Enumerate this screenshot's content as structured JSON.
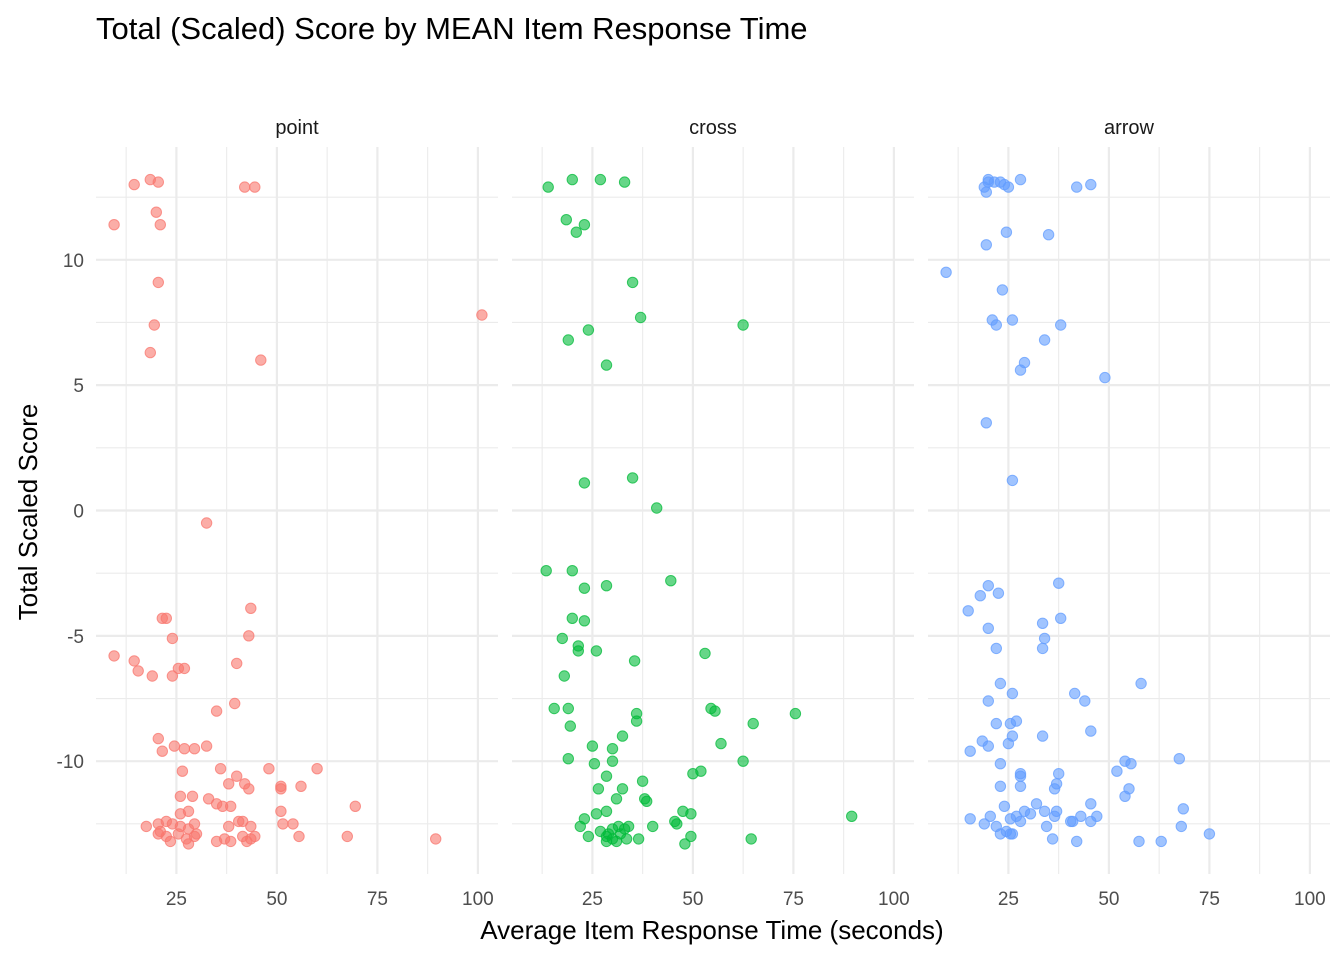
{
  "chart_data": {
    "type": "scatter",
    "title": "Total (Scaled) Score by MEAN Item Response Time",
    "xlabel": "Average Item Response Time (seconds)",
    "ylabel": "Total Scaled Score",
    "xlim": [
      5,
      105
    ],
    "ylim": [
      -14.5,
      14.5
    ],
    "x_ticks": [
      25,
      50,
      75,
      100
    ],
    "y_ticks": [
      -10,
      -5,
      0,
      5,
      10
    ],
    "x_tick_labels": [
      "25",
      "50",
      "75",
      "100"
    ],
    "y_tick_labels": [
      "-10",
      "-5",
      "0",
      "5",
      "10"
    ],
    "grid": true,
    "legend": "none",
    "point_opacity": 0.6,
    "panels": [
      {
        "name": "point",
        "color": "#F8766D",
        "points": [
          [
            9.5,
            11.4
          ],
          [
            14.5,
            13.0
          ],
          [
            18.5,
            13.2
          ],
          [
            20.5,
            13.1
          ],
          [
            20,
            11.9
          ],
          [
            21,
            11.4
          ],
          [
            20.5,
            9.1
          ],
          [
            19.5,
            7.4
          ],
          [
            18.5,
            6.3
          ],
          [
            42,
            12.9
          ],
          [
            44.5,
            12.9
          ],
          [
            46,
            6.0
          ],
          [
            101,
            7.8
          ],
          [
            32.5,
            -0.5
          ],
          [
            43.5,
            -3.9
          ],
          [
            21.5,
            -4.3
          ],
          [
            22.5,
            -4.3
          ],
          [
            43,
            -5.0
          ],
          [
            24,
            -5.1
          ],
          [
            9.5,
            -5.8
          ],
          [
            14.5,
            -6.0
          ],
          [
            15.5,
            -6.4
          ],
          [
            19,
            -6.6
          ],
          [
            24,
            -6.6
          ],
          [
            25.5,
            -6.3
          ],
          [
            27,
            -6.3
          ],
          [
            40,
            -6.1
          ],
          [
            39.5,
            -7.7
          ],
          [
            35,
            -8.0
          ],
          [
            20.5,
            -9.1
          ],
          [
            21.5,
            -9.6
          ],
          [
            24.5,
            -9.4
          ],
          [
            27,
            -9.5
          ],
          [
            29.5,
            -9.5
          ],
          [
            32.5,
            -9.4
          ],
          [
            26.5,
            -10.4
          ],
          [
            36,
            -10.3
          ],
          [
            38,
            -10.9
          ],
          [
            40,
            -10.6
          ],
          [
            42,
            -10.9
          ],
          [
            43,
            -11.1
          ],
          [
            48,
            -10.3
          ],
          [
            51,
            -11.0
          ],
          [
            51,
            -11.1
          ],
          [
            56,
            -11.0
          ],
          [
            60,
            -10.3
          ],
          [
            26,
            -11.4
          ],
          [
            29,
            -11.4
          ],
          [
            33,
            -11.5
          ],
          [
            35,
            -11.7
          ],
          [
            36.5,
            -11.8
          ],
          [
            38.5,
            -11.8
          ],
          [
            51,
            -12.0
          ],
          [
            69.5,
            -11.8
          ],
          [
            17.5,
            -12.6
          ],
          [
            20.5,
            -12.5
          ],
          [
            22.5,
            -12.4
          ],
          [
            24,
            -12.5
          ],
          [
            26,
            -12.6
          ],
          [
            28,
            -12.7
          ],
          [
            29.5,
            -12.5
          ],
          [
            38,
            -12.6
          ],
          [
            40.5,
            -12.4
          ],
          [
            41.5,
            -12.4
          ],
          [
            43.5,
            -12.6
          ],
          [
            51.5,
            -12.5
          ],
          [
            54,
            -12.5
          ],
          [
            20.5,
            -12.9
          ],
          [
            22.5,
            -13.0
          ],
          [
            23.5,
            -13.2
          ],
          [
            25.5,
            -12.9
          ],
          [
            27.5,
            -13.1
          ],
          [
            28,
            -13.3
          ],
          [
            29.5,
            -13.0
          ],
          [
            30,
            -12.9
          ],
          [
            35,
            -13.2
          ],
          [
            37,
            -13.1
          ],
          [
            38.5,
            -13.2
          ],
          [
            41.5,
            -13.0
          ],
          [
            42.5,
            -13.2
          ],
          [
            43.5,
            -13.1
          ],
          [
            44.5,
            -13.0
          ],
          [
            55.5,
            -13.0
          ],
          [
            67.5,
            -13.0
          ],
          [
            89.5,
            -13.1
          ],
          [
            26,
            -12.1
          ],
          [
            28,
            -12.0
          ],
          [
            21,
            -12.8
          ]
        ]
      },
      {
        "name": "cross",
        "color": "#00BA38",
        "points": [
          [
            14,
            12.9
          ],
          [
            20,
            13.2
          ],
          [
            27,
            13.2
          ],
          [
            33,
            13.1
          ],
          [
            18.5,
            11.6
          ],
          [
            21,
            11.1
          ],
          [
            23,
            11.4
          ],
          [
            35,
            9.1
          ],
          [
            37,
            7.7
          ],
          [
            24,
            7.2
          ],
          [
            19,
            6.8
          ],
          [
            28.5,
            5.8
          ],
          [
            62.5,
            7.4
          ],
          [
            35,
            1.3
          ],
          [
            23,
            1.1
          ],
          [
            41,
            0.1
          ],
          [
            13.5,
            -2.4
          ],
          [
            20,
            -2.4
          ],
          [
            23,
            -3.1
          ],
          [
            28.5,
            -3.0
          ],
          [
            44.5,
            -2.8
          ],
          [
            20,
            -4.3
          ],
          [
            23,
            -4.4
          ],
          [
            17.5,
            -5.1
          ],
          [
            21.5,
            -5.4
          ],
          [
            21.5,
            -5.6
          ],
          [
            26,
            -5.6
          ],
          [
            35.5,
            -6.0
          ],
          [
            53,
            -5.7
          ],
          [
            18,
            -6.6
          ],
          [
            15.5,
            -7.9
          ],
          [
            19,
            -7.9
          ],
          [
            36,
            -8.1
          ],
          [
            36,
            -8.4
          ],
          [
            54.5,
            -7.9
          ],
          [
            55.5,
            -8.0
          ],
          [
            65,
            -8.5
          ],
          [
            75.5,
            -8.1
          ],
          [
            19.5,
            -8.6
          ],
          [
            32.5,
            -9.0
          ],
          [
            25,
            -9.4
          ],
          [
            30,
            -9.5
          ],
          [
            57,
            -9.3
          ],
          [
            19,
            -9.9
          ],
          [
            25.5,
            -10.1
          ],
          [
            30,
            -10.0
          ],
          [
            62.5,
            -10.0
          ],
          [
            28.5,
            -10.6
          ],
          [
            37.5,
            -10.8
          ],
          [
            50,
            -10.5
          ],
          [
            52,
            -10.4
          ],
          [
            26.5,
            -11.1
          ],
          [
            31,
            -11.5
          ],
          [
            32.5,
            -11.1
          ],
          [
            38,
            -11.5
          ],
          [
            38.5,
            -11.6
          ],
          [
            23,
            -12.3
          ],
          [
            26,
            -12.1
          ],
          [
            28.5,
            -12.0
          ],
          [
            45.5,
            -12.4
          ],
          [
            46,
            -12.5
          ],
          [
            47.5,
            -12.0
          ],
          [
            49.5,
            -12.1
          ],
          [
            89.5,
            -12.2
          ],
          [
            22,
            -12.6
          ],
          [
            24,
            -13.0
          ],
          [
            28.5,
            -13.0
          ],
          [
            30,
            -12.7
          ],
          [
            31.5,
            -12.6
          ],
          [
            33,
            -12.7
          ],
          [
            34,
            -12.6
          ],
          [
            40,
            -12.6
          ],
          [
            28.5,
            -13.2
          ],
          [
            30,
            -13.1
          ],
          [
            31,
            -13.2
          ],
          [
            33.5,
            -13.1
          ],
          [
            36.5,
            -13.1
          ],
          [
            49.5,
            -13.0
          ],
          [
            48,
            -13.3
          ],
          [
            64.5,
            -13.1
          ],
          [
            29,
            -12.9
          ],
          [
            32,
            -12.9
          ],
          [
            27,
            -12.8
          ]
        ]
      },
      {
        "name": "arrow",
        "color": "#619CFF",
        "points": [
          [
            19,
            12.9
          ],
          [
            20,
            13.1
          ],
          [
            21.5,
            13.1
          ],
          [
            23,
            13.1
          ],
          [
            24,
            13.0
          ],
          [
            25,
            12.9
          ],
          [
            28,
            13.2
          ],
          [
            19.5,
            12.7
          ],
          [
            20,
            13.2
          ],
          [
            42,
            12.9
          ],
          [
            45.5,
            13.0
          ],
          [
            24.5,
            11.1
          ],
          [
            35,
            11.0
          ],
          [
            19.5,
            10.6
          ],
          [
            9.5,
            9.5
          ],
          [
            23.5,
            8.8
          ],
          [
            21,
            7.6
          ],
          [
            22,
            7.4
          ],
          [
            26,
            7.6
          ],
          [
            38,
            7.4
          ],
          [
            34,
            6.8
          ],
          [
            29,
            5.9
          ],
          [
            28,
            5.6
          ],
          [
            49,
            5.3
          ],
          [
            19.5,
            3.5
          ],
          [
            26,
            1.2
          ],
          [
            20,
            -3.0
          ],
          [
            22.5,
            -3.3
          ],
          [
            18,
            -3.4
          ],
          [
            15,
            -4.0
          ],
          [
            37.5,
            -2.9
          ],
          [
            20,
            -4.7
          ],
          [
            33.5,
            -4.5
          ],
          [
            38,
            -4.3
          ],
          [
            34,
            -5.1
          ],
          [
            22,
            -5.5
          ],
          [
            33.5,
            -5.5
          ],
          [
            58,
            -6.9
          ],
          [
            23,
            -6.9
          ],
          [
            26,
            -7.3
          ],
          [
            41.5,
            -7.3
          ],
          [
            44,
            -7.6
          ],
          [
            20,
            -7.6
          ],
          [
            27,
            -8.4
          ],
          [
            25.5,
            -8.5
          ],
          [
            22,
            -8.5
          ],
          [
            33.5,
            -9.0
          ],
          [
            26,
            -9.0
          ],
          [
            45.5,
            -8.8
          ],
          [
            18.5,
            -9.2
          ],
          [
            20,
            -9.4
          ],
          [
            25,
            -9.3
          ],
          [
            15.5,
            -9.6
          ],
          [
            23,
            -10.1
          ],
          [
            28,
            -10.5
          ],
          [
            28,
            -10.6
          ],
          [
            37.5,
            -10.5
          ],
          [
            37,
            -10.9
          ],
          [
            36.5,
            -11.1
          ],
          [
            28,
            -11.0
          ],
          [
            23,
            -11.0
          ],
          [
            52,
            -10.4
          ],
          [
            54,
            -10.0
          ],
          [
            55.5,
            -10.1
          ],
          [
            67.5,
            -9.9
          ],
          [
            54,
            -11.4
          ],
          [
            55,
            -11.1
          ],
          [
            15.5,
            -12.3
          ],
          [
            19,
            -12.5
          ],
          [
            20.5,
            -12.2
          ],
          [
            22,
            -12.6
          ],
          [
            24,
            -11.8
          ],
          [
            25.5,
            -12.3
          ],
          [
            27,
            -12.2
          ],
          [
            28,
            -12.4
          ],
          [
            29,
            -12.0
          ],
          [
            30.5,
            -12.1
          ],
          [
            32,
            -11.7
          ],
          [
            34,
            -12.0
          ],
          [
            36.5,
            -12.2
          ],
          [
            37,
            -12.0
          ],
          [
            41,
            -12.4
          ],
          [
            43,
            -12.2
          ],
          [
            45.5,
            -12.4
          ],
          [
            45.5,
            -11.7
          ],
          [
            47,
            -12.2
          ],
          [
            68.5,
            -11.9
          ],
          [
            68,
            -12.6
          ],
          [
            23,
            -12.9
          ],
          [
            24.5,
            -12.8
          ],
          [
            25.5,
            -12.9
          ],
          [
            26,
            -12.9
          ],
          [
            34.5,
            -12.6
          ],
          [
            36,
            -13.1
          ],
          [
            40.5,
            -12.4
          ],
          [
            42,
            -13.2
          ],
          [
            57.5,
            -13.2
          ],
          [
            63,
            -13.2
          ],
          [
            75,
            -12.9
          ]
        ]
      }
    ]
  }
}
